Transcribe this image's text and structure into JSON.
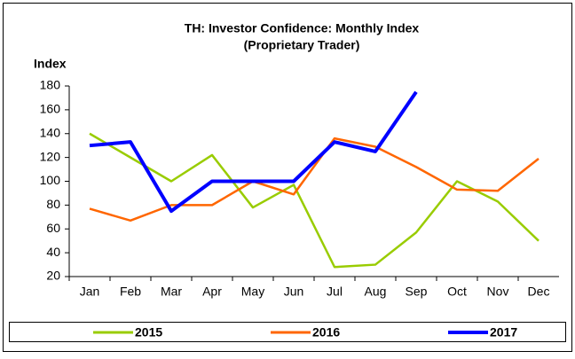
{
  "chart_data": {
    "type": "line",
    "title": "TH: Investor Confidence: Monthly Index",
    "subtitle": "(Proprietary Trader)",
    "y_label": "Index",
    "categories": [
      "Jan",
      "Feb",
      "Mar",
      "Apr",
      "May",
      "Jun",
      "Jul",
      "Aug",
      "Sep",
      "Oct",
      "Nov",
      "Dec"
    ],
    "series": [
      {
        "name": "2015",
        "color": "#99cc00",
        "values": [
          140,
          120,
          100,
          122,
          78,
          97,
          28,
          30,
          57,
          100,
          83,
          50
        ]
      },
      {
        "name": "2016",
        "color": "#ff6600",
        "values": [
          77,
          67,
          80,
          80,
          100,
          89,
          136,
          129,
          112,
          93,
          92,
          119
        ]
      },
      {
        "name": "2017",
        "color": "#0000ff",
        "values": [
          130,
          133,
          75,
          100,
          100,
          100,
          133,
          125,
          175,
          null,
          null,
          null
        ]
      }
    ],
    "ylim": [
      20,
      180
    ],
    "yticks": [
      20,
      40,
      60,
      80,
      100,
      120,
      140,
      160,
      180
    ],
    "grid": false,
    "legend": "bottom"
  }
}
